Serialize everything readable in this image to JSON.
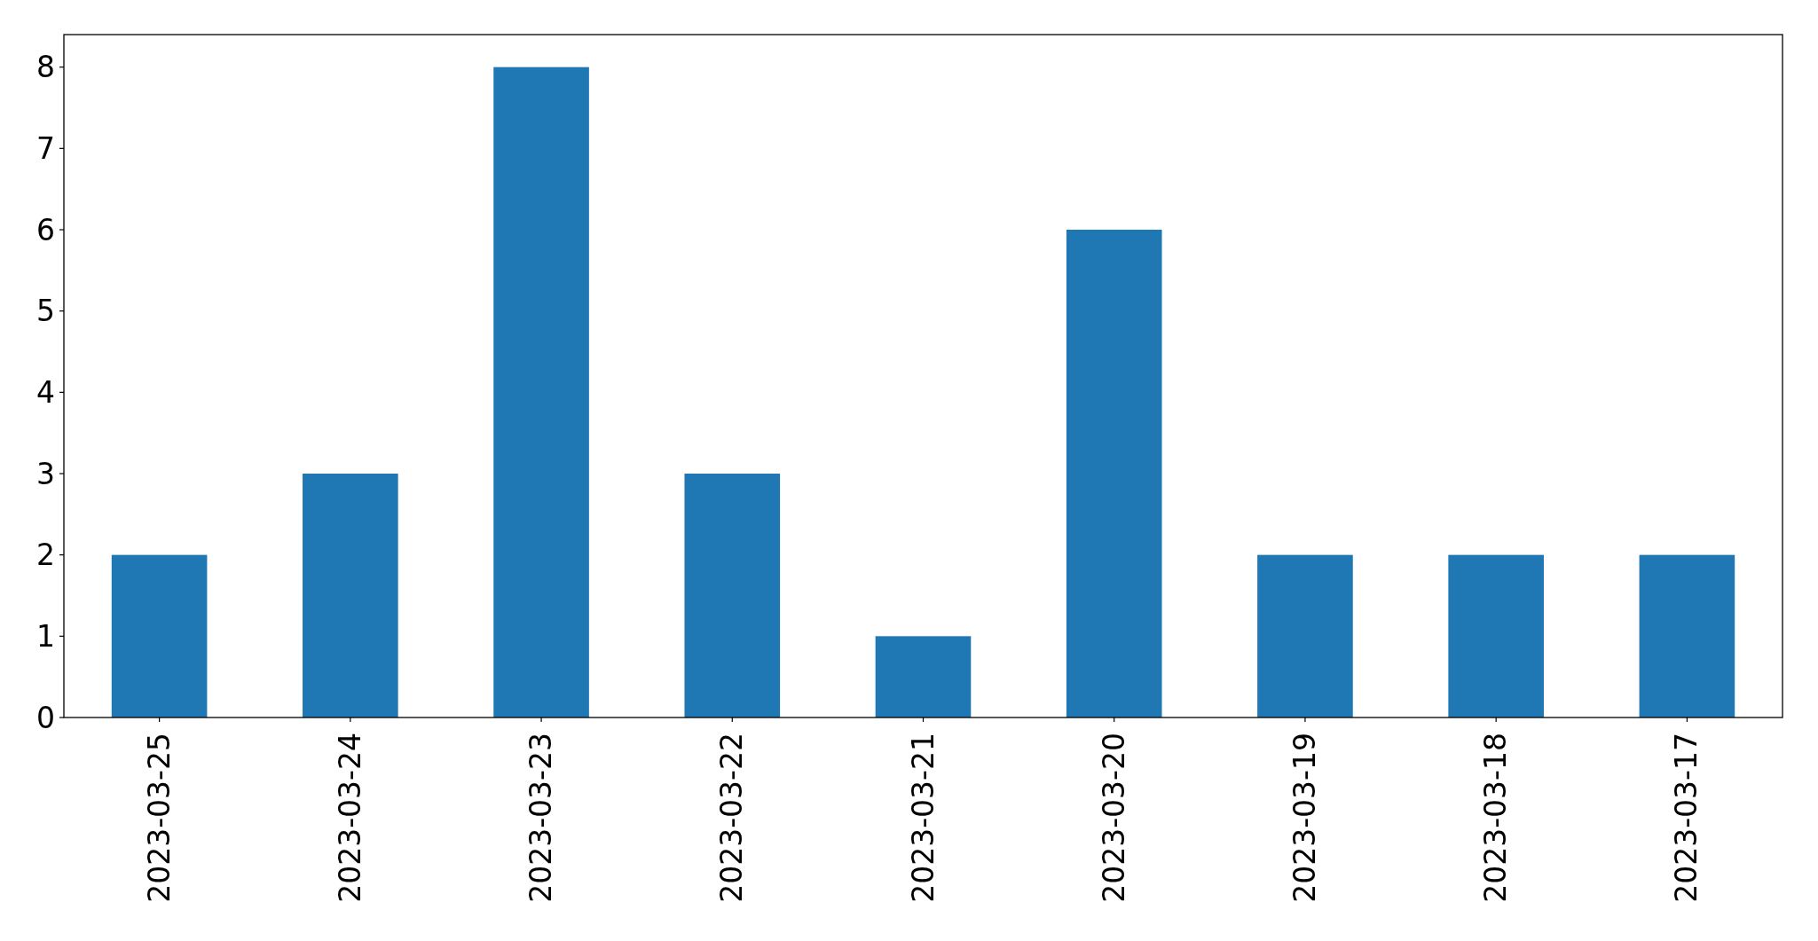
{
  "chart_data": {
    "type": "bar",
    "categories": [
      "2023-03-25",
      "2023-03-24",
      "2023-03-23",
      "2023-03-22",
      "2023-03-21",
      "2023-03-20",
      "2023-03-19",
      "2023-03-18",
      "2023-03-17"
    ],
    "values": [
      2,
      3,
      8,
      3,
      1,
      6,
      2,
      2,
      2
    ],
    "color": "#1f77b4",
    "ylim": [
      0,
      8.4
    ],
    "yticks": [
      0,
      1,
      2,
      3,
      4,
      5,
      6,
      7,
      8
    ]
  }
}
